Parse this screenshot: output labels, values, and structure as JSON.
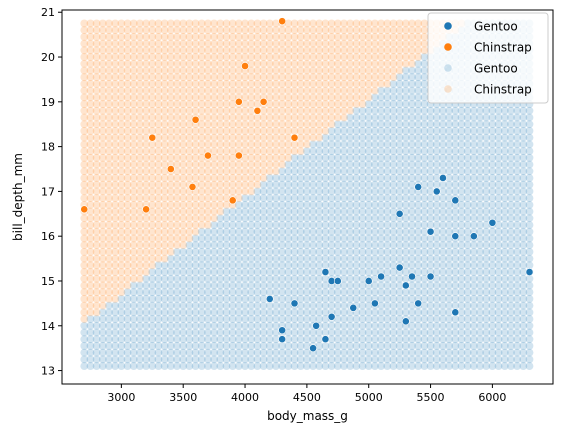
{
  "chart_data": {
    "type": "scatter",
    "xlabel": "body_mass_g",
    "ylabel": "bill_depth_mm",
    "xlim": [
      2520,
      6490
    ],
    "ylim": [
      12.7,
      21.05
    ],
    "xticks": [
      3000,
      3500,
      4000,
      4500,
      5000,
      5500,
      6000
    ],
    "yticks": [
      13,
      14,
      15,
      16,
      17,
      18,
      19,
      20,
      21
    ],
    "grid": false,
    "legend_position": "top-right",
    "legend": [
      {
        "label": "Gentoo",
        "color": "#1f77b4",
        "alpha": 1.0
      },
      {
        "label": "Chinstrap",
        "color": "#ff7f0e",
        "alpha": 1.0
      },
      {
        "label": "Gentoo",
        "color": "#1f77b4",
        "alpha": 0.2
      },
      {
        "label": "Chinstrap",
        "color": "#ff7f0e",
        "alpha": 0.2
      }
    ],
    "decision_grid": {
      "x_start": 2700,
      "x_step": 50,
      "x_count": 73,
      "y_start": 13.1,
      "y_step": 0.15,
      "y_count": 52,
      "boundary": {
        "x1": 2700,
        "y1": 14.05,
        "x2": 5800,
        "y2": 20.8
      },
      "below_class": "Gentoo",
      "above_class": "Chinstrap",
      "alpha": 0.2
    },
    "series": [
      {
        "name": "Chinstrap",
        "color": "#ff7f0e",
        "points": [
          [
            2700,
            16.6
          ],
          [
            3200,
            16.6
          ],
          [
            3250,
            18.2
          ],
          [
            3400,
            17.5
          ],
          [
            3575,
            17.1
          ],
          [
            3600,
            18.6
          ],
          [
            3700,
            17.8
          ],
          [
            3900,
            16.8
          ],
          [
            3950,
            19.0
          ],
          [
            3950,
            17.8
          ],
          [
            4000,
            19.8
          ],
          [
            4100,
            18.8
          ],
          [
            4150,
            19.0
          ],
          [
            4300,
            20.8
          ],
          [
            4400,
            18.2
          ]
        ]
      },
      {
        "name": "Gentoo",
        "color": "#1f77b4",
        "points": [
          [
            4200,
            14.6
          ],
          [
            4300,
            13.9
          ],
          [
            4300,
            13.7
          ],
          [
            4400,
            14.5
          ],
          [
            4550,
            13.5
          ],
          [
            4575,
            14.0
          ],
          [
            4650,
            13.7
          ],
          [
            4650,
            15.2
          ],
          [
            4700,
            15.0
          ],
          [
            4700,
            14.2
          ],
          [
            4750,
            15.0
          ],
          [
            4875,
            14.4
          ],
          [
            5000,
            15.0
          ],
          [
            5050,
            14.5
          ],
          [
            5100,
            15.1
          ],
          [
            5250,
            16.5
          ],
          [
            5250,
            15.3
          ],
          [
            5300,
            14.9
          ],
          [
            5300,
            14.1
          ],
          [
            5350,
            15.1
          ],
          [
            5400,
            17.1
          ],
          [
            5400,
            14.5
          ],
          [
            5500,
            16.1
          ],
          [
            5500,
            15.1
          ],
          [
            5550,
            17.0
          ],
          [
            5600,
            17.3
          ],
          [
            5700,
            16.8
          ],
          [
            5700,
            16.0
          ],
          [
            5700,
            14.3
          ],
          [
            5850,
            16.0
          ],
          [
            6000,
            16.3
          ],
          [
            6300,
            15.2
          ]
        ]
      }
    ]
  }
}
